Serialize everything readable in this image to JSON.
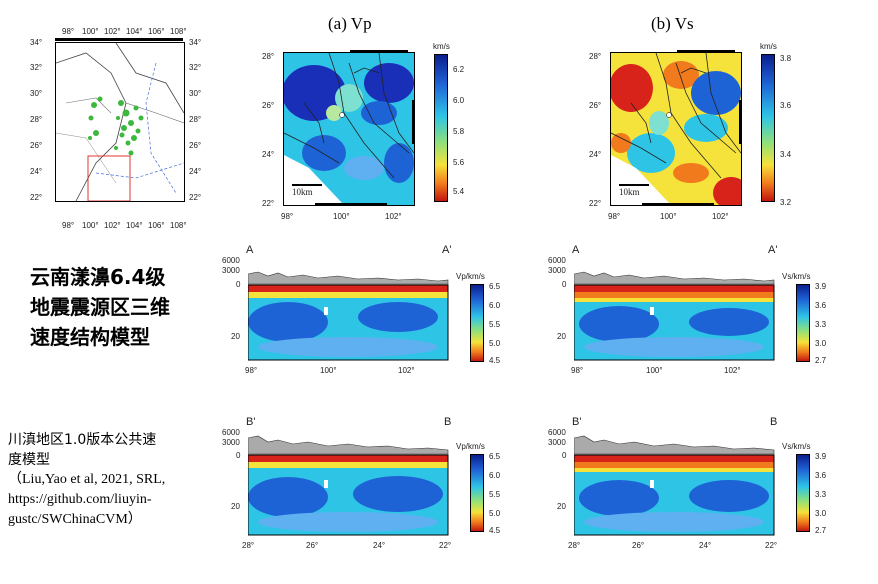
{
  "titles": {
    "vp": "(a) Vp",
    "vs": "(b) Vs"
  },
  "inset_map": {
    "lat_ticks": [
      "34°",
      "32°",
      "30°",
      "28°",
      "26°",
      "24°",
      "22°"
    ],
    "lon_ticks": [
      "98°",
      "100°",
      "102°",
      "104°",
      "106°",
      "108°"
    ]
  },
  "vp_map": {
    "lat_ticks": [
      "28°",
      "26°",
      "24°",
      "22°"
    ],
    "lon_ticks": [
      "98°",
      "100°",
      "102°"
    ],
    "unit": "km/s",
    "cbar_ticks": [
      "6.2",
      "6.0",
      "5.8",
      "5.6",
      "5.4"
    ],
    "scale_label": "10km"
  },
  "vs_map": {
    "lat_ticks": [
      "28°",
      "26°",
      "24°",
      "22°"
    ],
    "lon_ticks": [
      "98°",
      "100°",
      "102°"
    ],
    "unit": "km/s",
    "cbar_ticks": [
      "3.8",
      "3.6",
      "3.4",
      "3.2"
    ],
    "scale_label": "10km"
  },
  "section_aa": {
    "start": "A",
    "end": "A'",
    "elev_ticks": [
      "6000",
      "3000",
      "0"
    ],
    "depth_tick": "20",
    "x_ticks": [
      "98°",
      "100°",
      "102°"
    ],
    "vp_unit": "Vp/km/s",
    "vs_unit": "Vs/km/s",
    "vp_cbar_ticks": [
      "6.5",
      "6.0",
      "5.5",
      "5.0",
      "4.5"
    ],
    "vs_cbar_ticks": [
      "3.9",
      "3.6",
      "3.3",
      "3.0",
      "2.7"
    ]
  },
  "section_bb": {
    "start": "B'",
    "end": "B",
    "elev_ticks": [
      "6000",
      "3000",
      "0"
    ],
    "depth_tick": "20",
    "x_ticks": [
      "28°",
      "26°",
      "24°",
      "22°"
    ],
    "vp_unit": "Vp/km/s",
    "vs_unit": "Vs/km/s",
    "vp_cbar_ticks": [
      "6.5",
      "6.0",
      "5.5",
      "5.0",
      "4.5"
    ],
    "vs_cbar_ticks": [
      "3.9",
      "3.6",
      "3.3",
      "3.0",
      "2.7"
    ]
  },
  "caption": {
    "line1": "云南漾濞6.4级",
    "line2": "地震震源区三维",
    "line3": "速度结构模型"
  },
  "credit": {
    "line1": "川滇地区1.0版本公共速",
    "line2": "度模型",
    "line3": "（Liu,Yao et al, 2021, SRL,",
    "line4": "https://github.com/liuyin-",
    "line5": "gustc/SWChinaCVM）"
  },
  "colors": {
    "jet_blue": "#1a2fb8",
    "jet_cyan": "#2ec4e6",
    "jet_yellow": "#f5e23a",
    "jet_red": "#d8231a"
  }
}
